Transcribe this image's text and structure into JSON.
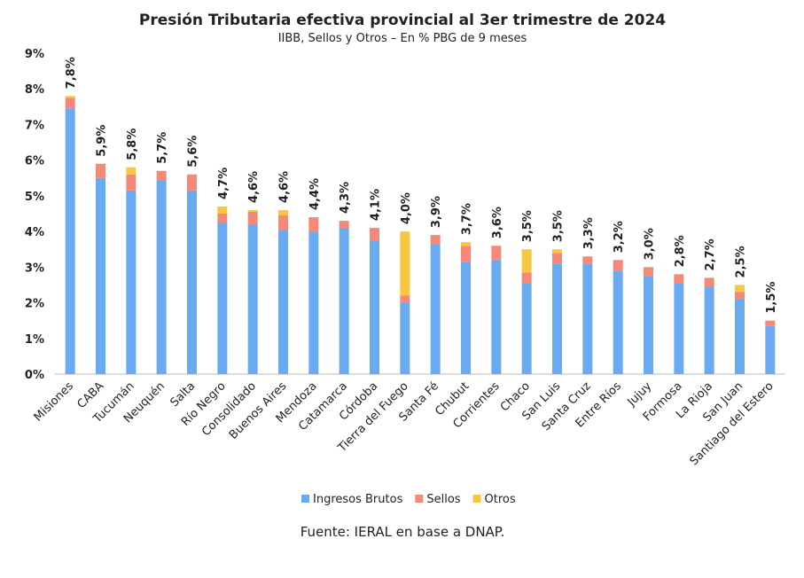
{
  "chart_data": {
    "type": "stacked_bar",
    "title": "Presión Tributaria efectiva provincial al 3er trimestre de 2024",
    "subtitle": "IIBB, Sellos y Otros – En % PBG de 9 meses",
    "source": "Fuente: IERAL en base a DNAP.",
    "categories": [
      "Misiones",
      "CABA",
      "Tucumán",
      "Neuquén",
      "Salta",
      "Río Negro",
      "Consolidado",
      "Buenos Aires",
      "Mendoza",
      "Catamarca",
      "Córdoba",
      "Tierra del Fuego",
      "Santa Fé",
      "Chubut",
      "Corrientes",
      "Chaco",
      "San Luis",
      "Santa Cruz",
      "Entre Ríos",
      "Jujuy",
      "Formosa",
      "La Rioja",
      "San Juan",
      "Santiago del Estero"
    ],
    "series": [
      {
        "name": "Ingresos Brutos",
        "color": "#6aaaf0",
        "values": [
          7.45,
          5.5,
          5.15,
          5.42,
          5.15,
          4.25,
          4.2,
          4.05,
          4.0,
          4.1,
          3.75,
          2.0,
          3.65,
          3.15,
          3.2,
          2.55,
          3.1,
          3.1,
          2.9,
          2.75,
          2.55,
          2.45,
          2.1,
          1.35
        ]
      },
      {
        "name": "Sellos",
        "color": "#f4897a",
        "values": [
          0.3,
          0.4,
          0.45,
          0.28,
          0.45,
          0.25,
          0.35,
          0.4,
          0.4,
          0.2,
          0.35,
          0.2,
          0.25,
          0.45,
          0.4,
          0.3,
          0.3,
          0.2,
          0.3,
          0.25,
          0.25,
          0.25,
          0.2,
          0.15
        ]
      },
      {
        "name": "Otros",
        "color": "#f9c642",
        "values": [
          0.05,
          0,
          0.2,
          0,
          0,
          0.2,
          0.05,
          0.15,
          0,
          0,
          0,
          1.8,
          0,
          0.1,
          0,
          0.65,
          0.1,
          0,
          0,
          0,
          0,
          0,
          0.2,
          0
        ]
      }
    ],
    "totals": [
      7.8,
      5.9,
      5.8,
      5.7,
      5.6,
      4.7,
      4.6,
      4.6,
      4.4,
      4.3,
      4.1,
      4.0,
      3.9,
      3.7,
      3.6,
      3.5,
      3.5,
      3.3,
      3.2,
      3.0,
      2.8,
      2.7,
      2.5,
      1.5
    ],
    "total_labels": [
      "7,8%",
      "5,9%",
      "5,8%",
      "5,7%",
      "5,6%",
      "4,7%",
      "4,6%",
      "4,6%",
      "4,4%",
      "4,3%",
      "4,1%",
      "4,0%",
      "3,9%",
      "3,7%",
      "3,6%",
      "3,5%",
      "3,5%",
      "3,3%",
      "3,2%",
      "3,0%",
      "2,8%",
      "2,7%",
      "2,5%",
      "1,5%"
    ],
    "ylim": [
      0,
      9
    ],
    "yticks": [
      {
        "value": 0,
        "label": "0%"
      },
      {
        "value": 1,
        "label": "1%"
      },
      {
        "value": 2,
        "label": "2%"
      },
      {
        "value": 3,
        "label": "3%"
      },
      {
        "value": 4,
        "label": "4%"
      },
      {
        "value": 5,
        "label": "5%"
      },
      {
        "value": 6,
        "label": "6%"
      },
      {
        "value": 7,
        "label": "7%"
      },
      {
        "value": 8,
        "label": "8%"
      },
      {
        "value": 9,
        "label": "9%"
      }
    ],
    "grid": false
  }
}
